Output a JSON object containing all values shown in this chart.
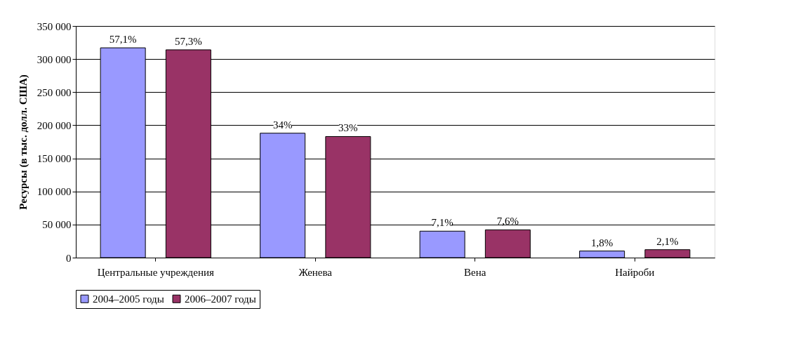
{
  "chart_data": {
    "type": "bar",
    "ylabel": "Ресурсы (в тыс. долл. США)",
    "categories": [
      "Центральные учреждения",
      "Женева",
      "Вена",
      "Найроби"
    ],
    "series": [
      {
        "name": "2004–2005 годы",
        "color": "#9999ff",
        "values": [
          317000,
          188000,
          40000,
          10000
        ]
      },
      {
        "name": "2006–2007 годы",
        "color": "#993366",
        "values": [
          314000,
          183000,
          42000,
          12000
        ]
      }
    ],
    "annotations": [
      "57,1%",
      "57,3%",
      "34%",
      "33%",
      "7,1%",
      "7,6%",
      "1,8%",
      "2,1%"
    ],
    "ylim": [
      0,
      350000
    ],
    "yticks": [
      {
        "value": 0,
        "label": "0"
      },
      {
        "value": 50000,
        "label": "50 000"
      },
      {
        "value": 100000,
        "label": "100 000"
      },
      {
        "value": 150000,
        "label": "150 000"
      },
      {
        "value": 200000,
        "label": "200 000"
      },
      {
        "value": 250000,
        "label": "250 000"
      },
      {
        "value": 300000,
        "label": "300 000"
      },
      {
        "value": 350000,
        "label": "350 000"
      }
    ],
    "grid": "y",
    "legend": "bottom"
  }
}
